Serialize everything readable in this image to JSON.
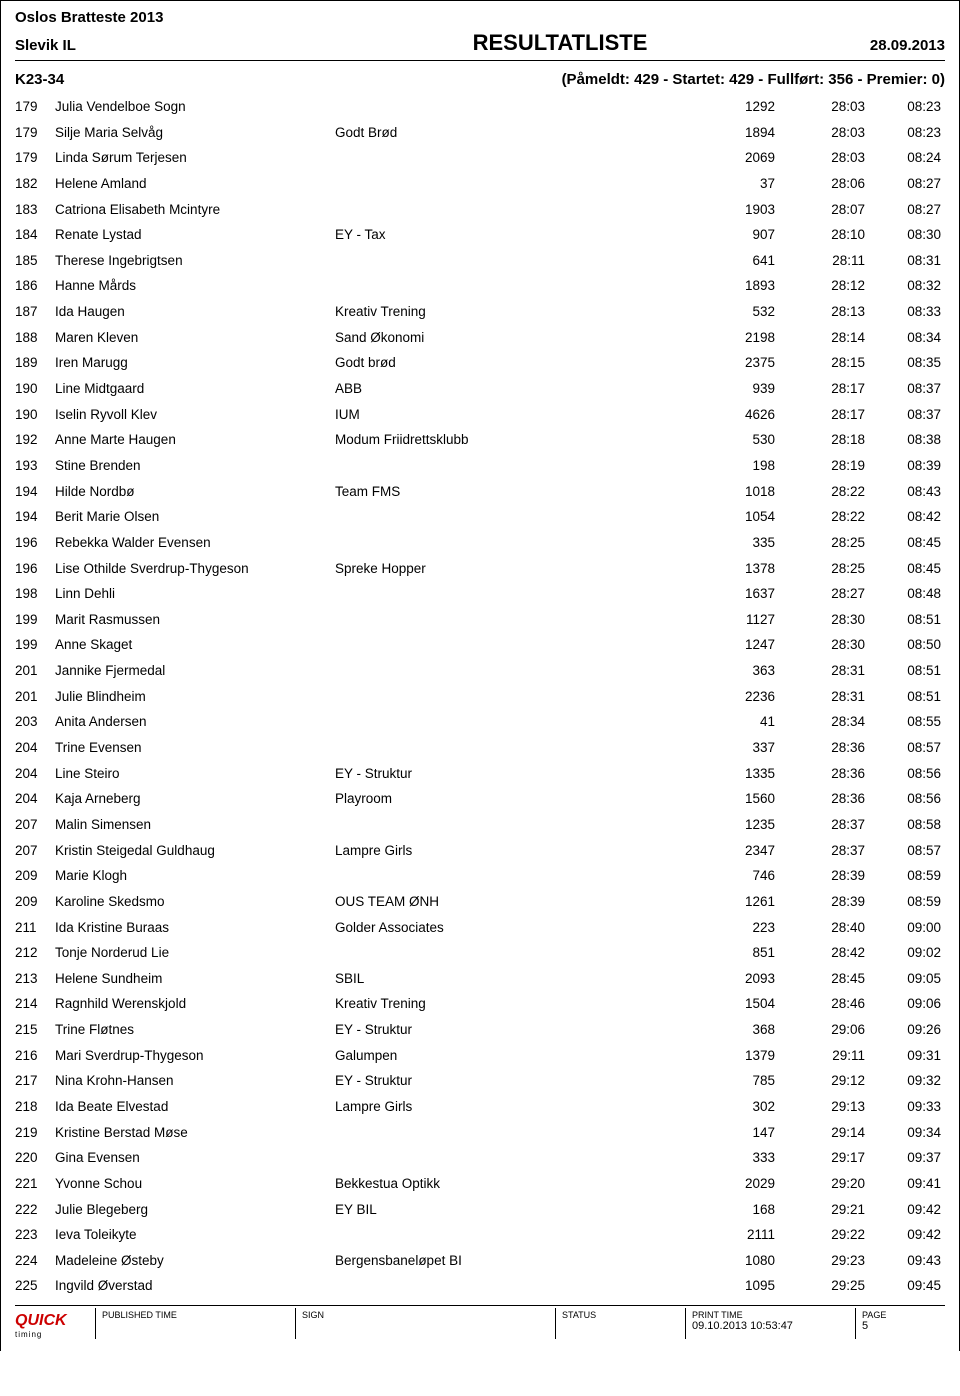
{
  "header": {
    "event": "Oslos Bratteste 2013",
    "club": "Slevik IL",
    "title": "RESULTATLISTE",
    "date": "28.09.2013"
  },
  "category": {
    "label": "K23-34",
    "summary": "(Påmeldt: 429  -  Startet: 429  -  Fullført: 356  -  Premier: 0)"
  },
  "rows": [
    {
      "pl": "179",
      "name": "Julia Vendelboe Sogn",
      "team": "",
      "bib": "1292",
      "t1": "28:03",
      "t2": "08:23"
    },
    {
      "pl": "179",
      "name": "Silje Maria Selvåg",
      "team": "Godt Brød",
      "bib": "1894",
      "t1": "28:03",
      "t2": "08:23"
    },
    {
      "pl": "179",
      "name": "Linda Sørum Terjesen",
      "team": "",
      "bib": "2069",
      "t1": "28:03",
      "t2": "08:24"
    },
    {
      "pl": "182",
      "name": "Helene Amland",
      "team": "",
      "bib": "37",
      "t1": "28:06",
      "t2": "08:27"
    },
    {
      "pl": "183",
      "name": "Catriona Elisabeth Mcintyre",
      "team": "",
      "bib": "1903",
      "t1": "28:07",
      "t2": "08:27"
    },
    {
      "pl": "184",
      "name": "Renate Lystad",
      "team": "EY - Tax",
      "bib": "907",
      "t1": "28:10",
      "t2": "08:30"
    },
    {
      "pl": "185",
      "name": "Therese Ingebrigtsen",
      "team": "",
      "bib": "641",
      "t1": "28:11",
      "t2": "08:31"
    },
    {
      "pl": "186",
      "name": "Hanne Mårds",
      "team": "",
      "bib": "1893",
      "t1": "28:12",
      "t2": "08:32"
    },
    {
      "pl": "187",
      "name": "Ida Haugen",
      "team": "Kreativ Trening",
      "bib": "532",
      "t1": "28:13",
      "t2": "08:33"
    },
    {
      "pl": "188",
      "name": "Maren Kleven",
      "team": "Sand Økonomi",
      "bib": "2198",
      "t1": "28:14",
      "t2": "08:34"
    },
    {
      "pl": "189",
      "name": "Iren Marugg",
      "team": "Godt brød",
      "bib": "2375",
      "t1": "28:15",
      "t2": "08:35"
    },
    {
      "pl": "190",
      "name": "Line Midtgaard",
      "team": "ABB",
      "bib": "939",
      "t1": "28:17",
      "t2": "08:37"
    },
    {
      "pl": "190",
      "name": "Iselin Ryvoll Klev",
      "team": "IUM",
      "bib": "4626",
      "t1": "28:17",
      "t2": "08:37"
    },
    {
      "pl": "192",
      "name": "Anne Marte Haugen",
      "team": "Modum Friidrettsklubb",
      "bib": "530",
      "t1": "28:18",
      "t2": "08:38"
    },
    {
      "pl": "193",
      "name": "Stine Brenden",
      "team": "",
      "bib": "198",
      "t1": "28:19",
      "t2": "08:39"
    },
    {
      "pl": "194",
      "name": "Hilde Nordbø",
      "team": "Team FMS",
      "bib": "1018",
      "t1": "28:22",
      "t2": "08:43"
    },
    {
      "pl": "194",
      "name": "Berit Marie Olsen",
      "team": "",
      "bib": "1054",
      "t1": "28:22",
      "t2": "08:42"
    },
    {
      "pl": "196",
      "name": "Rebekka Walder Evensen",
      "team": "",
      "bib": "335",
      "t1": "28:25",
      "t2": "08:45"
    },
    {
      "pl": "196",
      "name": "Lise Othilde Sverdrup-Thygeson",
      "team": "Spreke Hopper",
      "bib": "1378",
      "t1": "28:25",
      "t2": "08:45"
    },
    {
      "pl": "198",
      "name": "Linn Dehli",
      "team": "",
      "bib": "1637",
      "t1": "28:27",
      "t2": "08:48"
    },
    {
      "pl": "199",
      "name": "Marit Rasmussen",
      "team": "",
      "bib": "1127",
      "t1": "28:30",
      "t2": "08:51"
    },
    {
      "pl": "199",
      "name": "Anne Skaget",
      "team": "",
      "bib": "1247",
      "t1": "28:30",
      "t2": "08:50"
    },
    {
      "pl": "201",
      "name": "Jannike Fjermedal",
      "team": "",
      "bib": "363",
      "t1": "28:31",
      "t2": "08:51"
    },
    {
      "pl": "201",
      "name": "Julie Blindheim",
      "team": "",
      "bib": "2236",
      "t1": "28:31",
      "t2": "08:51"
    },
    {
      "pl": "203",
      "name": "Anita Andersen",
      "team": "",
      "bib": "41",
      "t1": "28:34",
      "t2": "08:55"
    },
    {
      "pl": "204",
      "name": "Trine Evensen",
      "team": "",
      "bib": "337",
      "t1": "28:36",
      "t2": "08:57"
    },
    {
      "pl": "204",
      "name": "Line Steiro",
      "team": "EY - Struktur",
      "bib": "1335",
      "t1": "28:36",
      "t2": "08:56"
    },
    {
      "pl": "204",
      "name": "Kaja Arneberg",
      "team": "Playroom",
      "bib": "1560",
      "t1": "28:36",
      "t2": "08:56"
    },
    {
      "pl": "207",
      "name": "Malin Simensen",
      "team": "",
      "bib": "1235",
      "t1": "28:37",
      "t2": "08:58"
    },
    {
      "pl": "207",
      "name": "Kristin Steigedal Guldhaug",
      "team": "Lampre Girls",
      "bib": "2347",
      "t1": "28:37",
      "t2": "08:57"
    },
    {
      "pl": "209",
      "name": "Marie Klogh",
      "team": "",
      "bib": "746",
      "t1": "28:39",
      "t2": "08:59"
    },
    {
      "pl": "209",
      "name": "Karoline Skedsmo",
      "team": "OUS TEAM ØNH",
      "bib": "1261",
      "t1": "28:39",
      "t2": "08:59"
    },
    {
      "pl": "211",
      "name": "Ida Kristine Buraas",
      "team": "Golder Associates",
      "bib": "223",
      "t1": "28:40",
      "t2": "09:00"
    },
    {
      "pl": "212",
      "name": "Tonje Norderud Lie",
      "team": "",
      "bib": "851",
      "t1": "28:42",
      "t2": "09:02"
    },
    {
      "pl": "213",
      "name": "Helene Sundheim",
      "team": "SBIL",
      "bib": "2093",
      "t1": "28:45",
      "t2": "09:05"
    },
    {
      "pl": "214",
      "name": "Ragnhild Werenskjold",
      "team": "Kreativ Trening",
      "bib": "1504",
      "t1": "28:46",
      "t2": "09:06"
    },
    {
      "pl": "215",
      "name": "Trine Fløtnes",
      "team": "EY - Struktur",
      "bib": "368",
      "t1": "29:06",
      "t2": "09:26"
    },
    {
      "pl": "216",
      "name": "Mari Sverdrup-Thygeson",
      "team": "Galumpen",
      "bib": "1379",
      "t1": "29:11",
      "t2": "09:31"
    },
    {
      "pl": "217",
      "name": "Nina Krohn-Hansen",
      "team": "EY - Struktur",
      "bib": "785",
      "t1": "29:12",
      "t2": "09:32"
    },
    {
      "pl": "218",
      "name": "Ida Beate Elvestad",
      "team": "Lampre Girls",
      "bib": "302",
      "t1": "29:13",
      "t2": "09:33"
    },
    {
      "pl": "219",
      "name": "Kristine Berstad Møse",
      "team": "",
      "bib": "147",
      "t1": "29:14",
      "t2": "09:34"
    },
    {
      "pl": "220",
      "name": "Gina Evensen",
      "team": "",
      "bib": "333",
      "t1": "29:17",
      "t2": "09:37"
    },
    {
      "pl": "221",
      "name": "Yvonne Schou",
      "team": "Bekkestua Optikk",
      "bib": "2029",
      "t1": "29:20",
      "t2": "09:41"
    },
    {
      "pl": "222",
      "name": "Julie Blegeberg",
      "team": "EY BIL",
      "bib": "168",
      "t1": "29:21",
      "t2": "09:42"
    },
    {
      "pl": "223",
      "name": "Ieva Toleikyte",
      "team": "",
      "bib": "2111",
      "t1": "29:22",
      "t2": "09:42"
    },
    {
      "pl": "224",
      "name": "Madeleine Østeby",
      "team": "Bergensbaneløpet BI",
      "bib": "1080",
      "t1": "29:23",
      "t2": "09:43"
    },
    {
      "pl": "225",
      "name": "Ingvild Øverstad",
      "team": "",
      "bib": "1095",
      "t1": "29:25",
      "t2": "09:45"
    }
  ],
  "footer": {
    "published_label": "PUBLISHED TIME",
    "sign_label": "SIGN",
    "status_label": "STATUS",
    "print_label": "PRINT TIME",
    "print_value": "09.10.2013 10:53:47",
    "page_label": "PAGE",
    "page_value": "5",
    "logo_main": "QUICK",
    "logo_sub": "timing"
  }
}
